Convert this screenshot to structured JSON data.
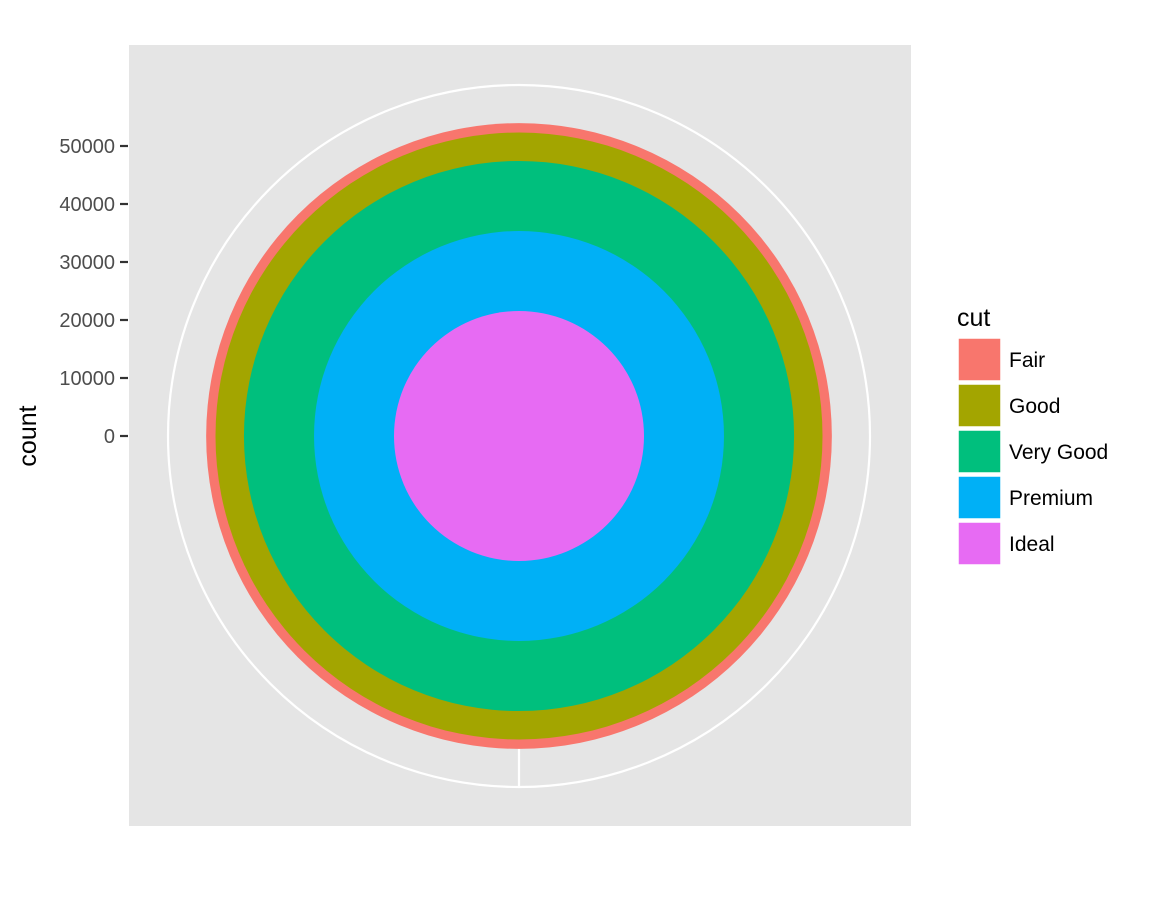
{
  "chart_data": {
    "type": "pie",
    "variant": "stacked bar in polar coordinates (concentric rings)",
    "ylabel": "count",
    "y_ticks": [
      0,
      10000,
      20000,
      30000,
      40000,
      50000
    ],
    "ylim": [
      0,
      60000
    ],
    "categories": [
      "Fair",
      "Good",
      "Very Good",
      "Premium",
      "Ideal"
    ],
    "values": [
      1610,
      4906,
      12082,
      13791,
      21551
    ],
    "colors": [
      "#F8766D",
      "#A3A500",
      "#00BF7D",
      "#00B0F6",
      "#E76BF3"
    ],
    "legend": {
      "title": "cut",
      "position": "right",
      "entries": [
        "Fair",
        "Good",
        "Very Good",
        "Premium",
        "Ideal"
      ]
    },
    "panel_background": "#E5E5E5",
    "grid_color": "#FFFFFF",
    "grid": true
  }
}
